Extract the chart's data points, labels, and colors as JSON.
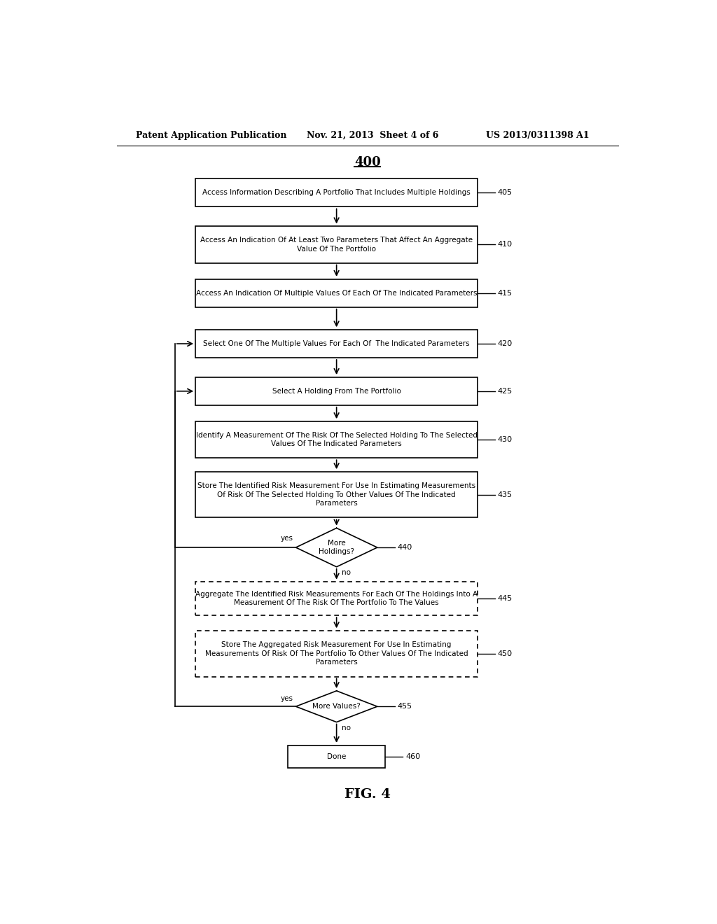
{
  "title": "400",
  "header_left": "Patent Application Publication",
  "header_mid": "Nov. 21, 2013  Sheet 4 of 6",
  "header_right": "US 2013/0311398 A1",
  "fig_label": "FIG. 4",
  "bg_color": "#ffffff",
  "box_405": "Access Information Describing A Portfolio That Includes Multiple Holdings",
  "box_410": "Access An Indication Of At Least Two Parameters That Affect An Aggregate\nValue Of The Portfolio",
  "box_415": "Access An Indication Of Multiple Values Of Each Of The Indicated Parameters",
  "box_420": "Select One Of The Multiple Values For Each Of  The Indicated Parameters",
  "box_425": "Select A Holding From The Portfolio",
  "box_430": "Identify A Measurement Of The Risk Of The Selected Holding To The Selected\nValues Of The Indicated Parameters",
  "box_435": "Store The Identified Risk Measurement For Use In Estimating Measurements\nOf Risk Of The Selected Holding To Other Values Of The Indicated\nParameters",
  "box_440": "More\nHoldings?",
  "box_445": "Aggregate The Identified Risk Measurements For Each Of The Holdings Into A\nMeasurement Of The Risk Of The Portfolio To The Values",
  "box_450": "Store The Aggregated Risk Measurement For Use In Estimating\nMeasurements Of Risk Of The Portfolio To Other Values Of The Indicated\nParameters",
  "box_455": "More Values?",
  "box_460": "Done"
}
